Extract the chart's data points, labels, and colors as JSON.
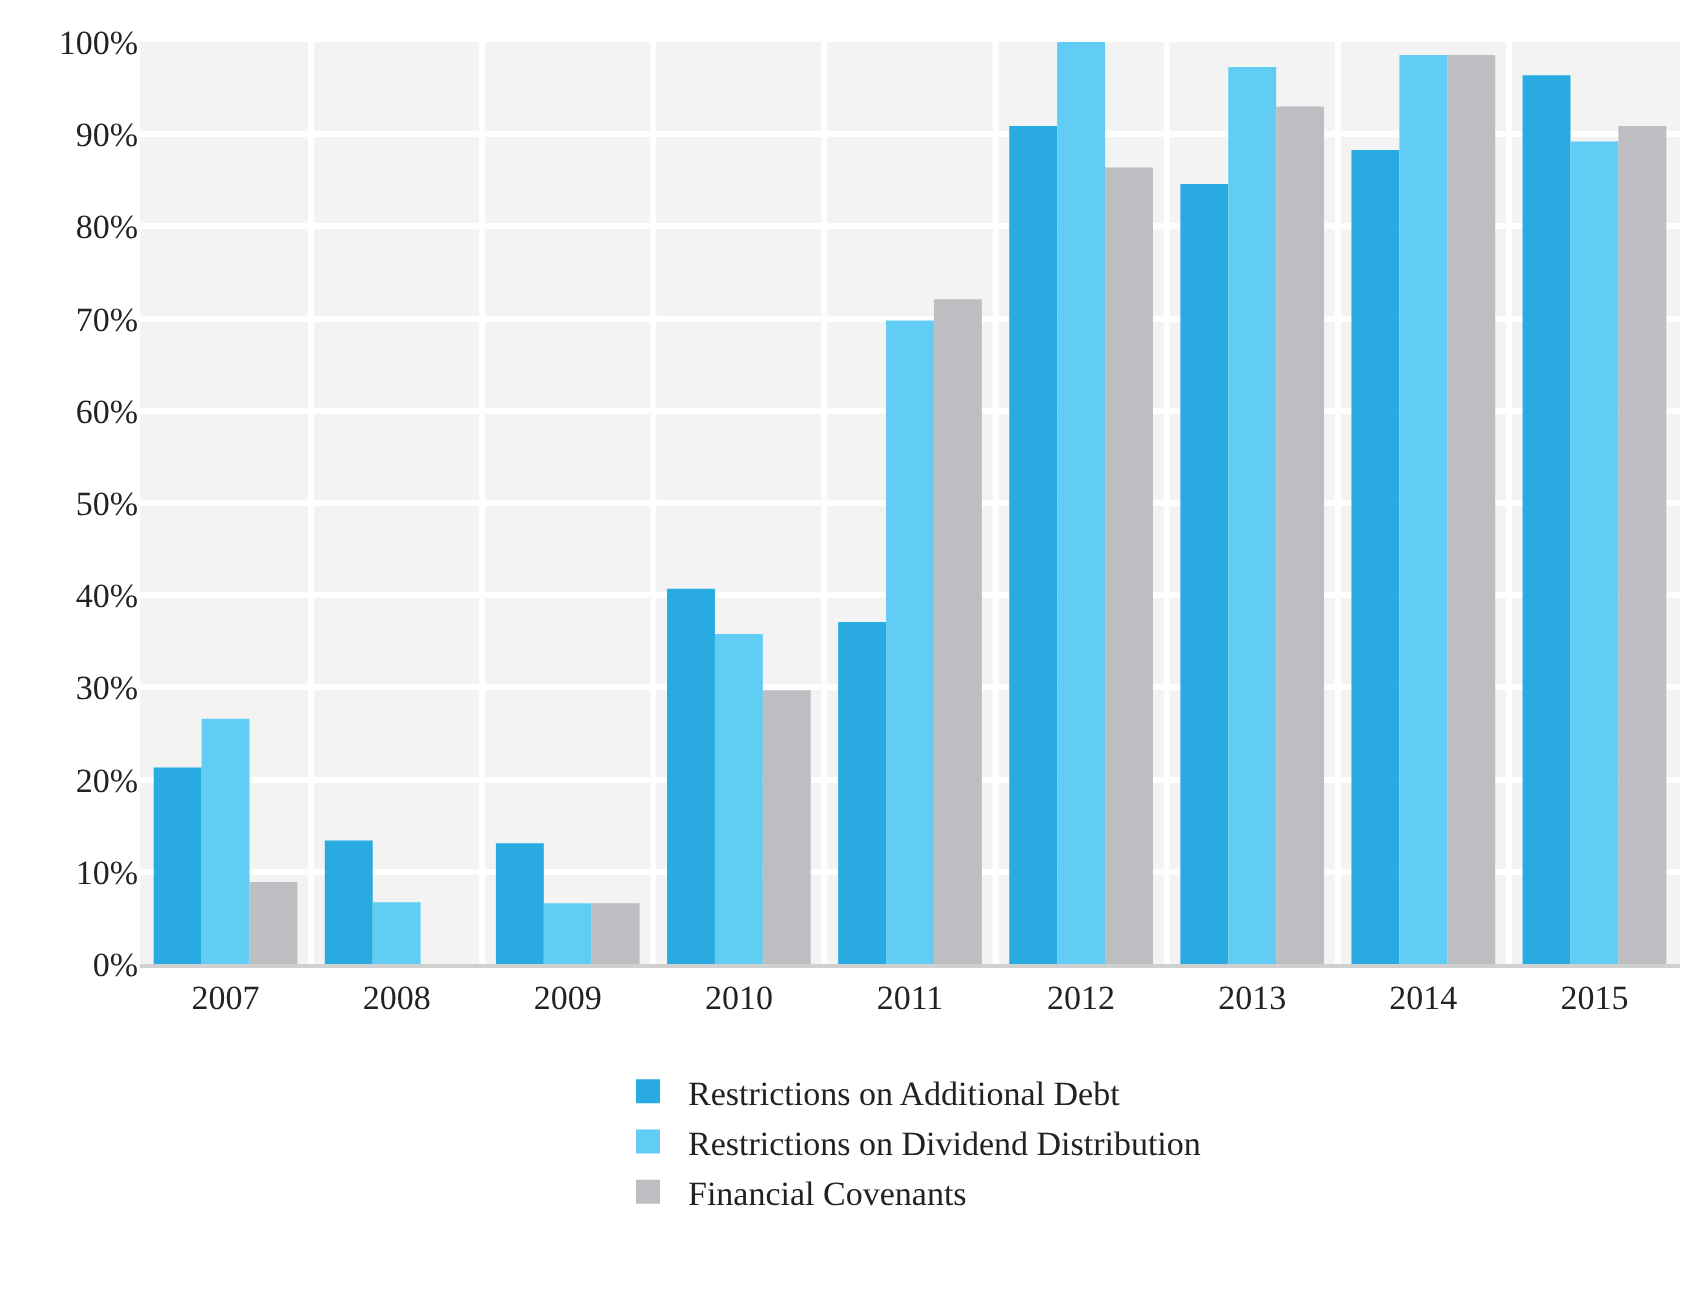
{
  "chart_data": {
    "type": "bar",
    "categories": [
      "2007",
      "2008",
      "2009",
      "2010",
      "2011",
      "2012",
      "2013",
      "2014",
      "2015"
    ],
    "series": [
      {
        "name": "Restrictions on Additional Debt",
        "color": "#29abe2",
        "values": [
          21.3,
          13.4,
          13.1,
          40.7,
          37.1,
          90.9,
          84.6,
          88.3,
          96.4
        ]
      },
      {
        "name": "Restrictions on Dividend Distribution",
        "color": "#62cdf4",
        "values": [
          26.6,
          6.7,
          6.6,
          35.8,
          69.8,
          100,
          97.3,
          98.6,
          89.2
        ]
      },
      {
        "name": "Financial Covenants",
        "color": "#bdbec2",
        "values": [
          8.9,
          0,
          6.6,
          29.7,
          72.1,
          86.4,
          93.0,
          98.6,
          90.9
        ]
      }
    ],
    "ylim": [
      0,
      100
    ],
    "yticks": [
      {
        "value": 0,
        "label": "0%"
      },
      {
        "value": 10,
        "label": "10%"
      },
      {
        "value": 20,
        "label": "20%"
      },
      {
        "value": 30,
        "label": "30%"
      },
      {
        "value": 40,
        "label": "40%"
      },
      {
        "value": 50,
        "label": "50%"
      },
      {
        "value": 60,
        "label": "60%"
      },
      {
        "value": 70,
        "label": "70%"
      },
      {
        "value": 80,
        "label": "80%"
      },
      {
        "value": 90,
        "label": "90%"
      },
      {
        "value": 100,
        "label": "100%"
      }
    ],
    "grid": true,
    "legend": "bottom"
  }
}
